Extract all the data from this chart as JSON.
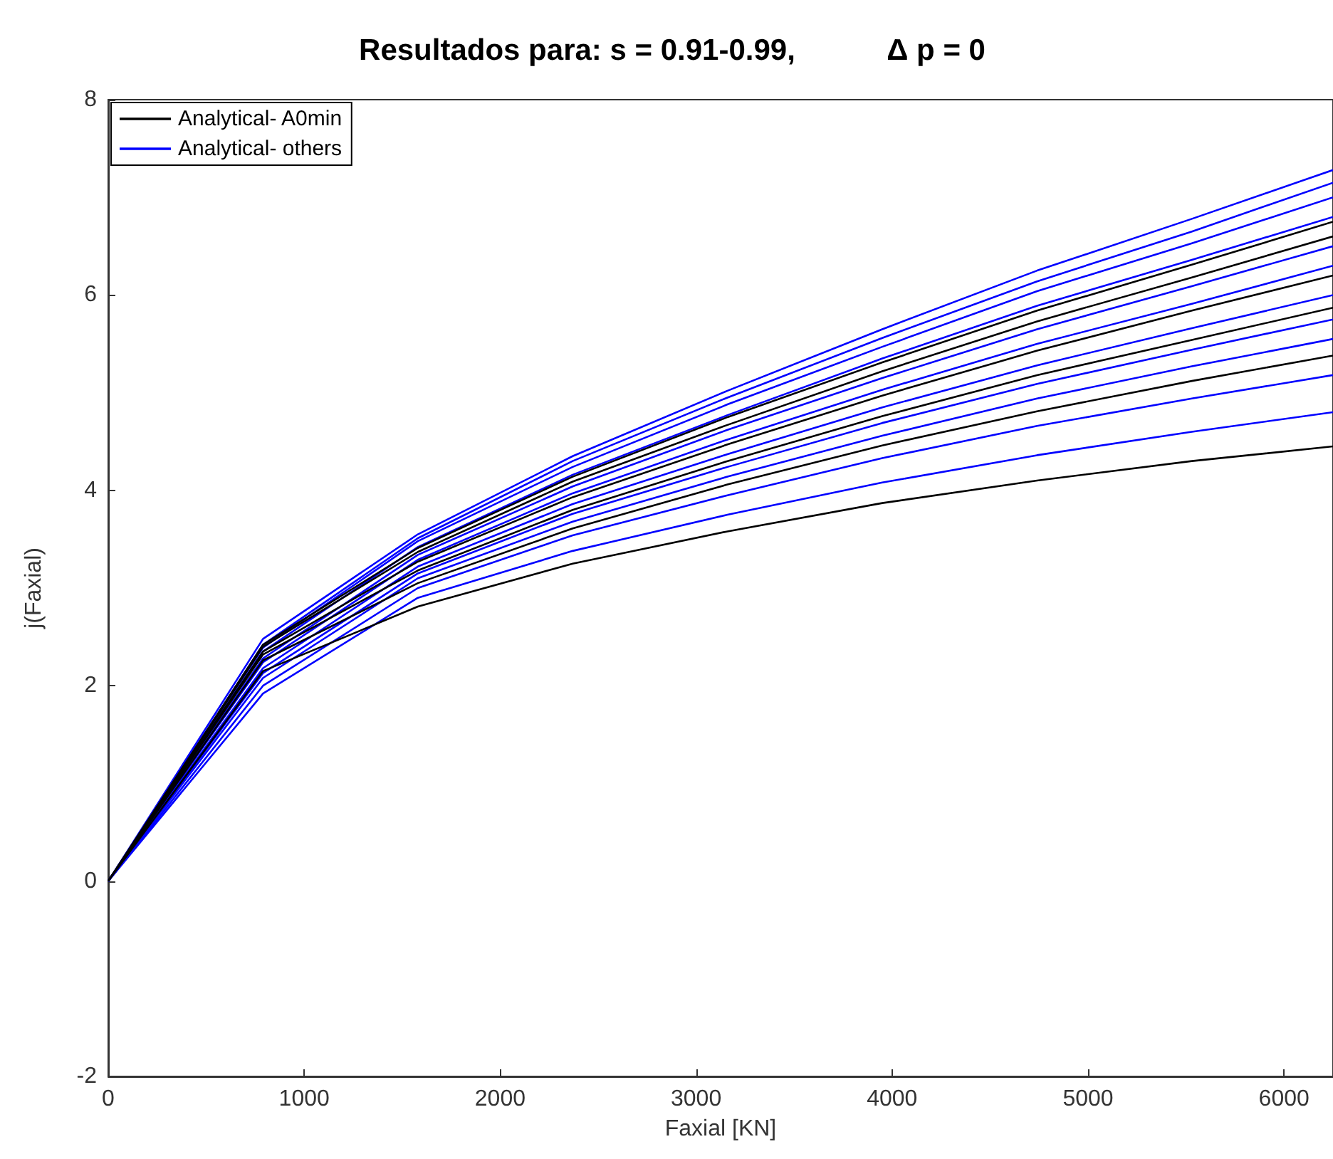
{
  "chart_data": {
    "type": "line",
    "title": "Resultados para: s = 0.91-0.99,           Δ p = 0",
    "xlabel": "Faxial [KN]",
    "ylabel": "j(Faxial)",
    "x": [
      0,
      790,
      1580,
      2370,
      3160,
      3950,
      4740,
      5530,
      6250
    ],
    "xlim": [
      0,
      6250
    ],
    "xticks": [
      0,
      1000,
      2000,
      3000,
      4000,
      5000,
      6000
    ],
    "ylim": [
      -2,
      8
    ],
    "yticks": [
      -2,
      0,
      2,
      4,
      6,
      8
    ],
    "grid": false,
    "legend": "top left",
    "marker": "none",
    "line_style": "solid",
    "series": [
      {
        "name": "Analytical- A0min",
        "color": "#000000",
        "values": [
          0,
          2.15,
          2.81,
          3.25,
          3.58,
          3.87,
          4.1,
          4.3,
          4.45
        ]
      },
      {
        "color": "#000000",
        "values": [
          0,
          2.26,
          3.05,
          3.61,
          4.06,
          4.46,
          4.81,
          5.12,
          5.38
        ]
      },
      {
        "color": "#000000",
        "values": [
          0,
          2.32,
          3.18,
          3.8,
          4.3,
          4.76,
          5.18,
          5.54,
          5.87
        ]
      },
      {
        "color": "#000000",
        "values": [
          0,
          2.35,
          3.27,
          3.93,
          4.47,
          4.97,
          5.43,
          5.84,
          6.2
        ]
      },
      {
        "color": "#000000",
        "values": [
          0,
          2.4,
          3.37,
          4.09,
          4.67,
          5.22,
          5.73,
          6.18,
          6.6
        ]
      },
      {
        "color": "#000000",
        "values": [
          0,
          2.42,
          3.41,
          4.14,
          4.75,
          5.31,
          5.84,
          6.31,
          6.75
        ]
      },
      {
        "name": "Analytical- others",
        "color": "#0000ff",
        "values": [
          0,
          1.92,
          2.9,
          3.38,
          3.75,
          4.08,
          4.36,
          4.6,
          4.8
        ]
      },
      {
        "color": "#0000ff",
        "values": [
          0,
          2.0,
          3.0,
          3.54,
          3.95,
          4.33,
          4.66,
          4.94,
          5.18
        ]
      },
      {
        "color": "#0000ff",
        "values": [
          0,
          2.08,
          3.1,
          3.68,
          4.14,
          4.56,
          4.94,
          5.27,
          5.55
        ]
      },
      {
        "color": "#0000ff",
        "values": [
          0,
          2.13,
          3.15,
          3.76,
          4.24,
          4.69,
          5.09,
          5.44,
          5.75
        ]
      },
      {
        "color": "#0000ff",
        "values": [
          0,
          2.18,
          3.22,
          3.86,
          4.37,
          4.85,
          5.28,
          5.66,
          6.0
        ]
      },
      {
        "color": "#0000ff",
        "values": [
          0,
          2.24,
          3.29,
          3.97,
          4.52,
          5.03,
          5.5,
          5.91,
          6.3
        ]
      },
      {
        "color": "#0000ff",
        "values": [
          0,
          2.28,
          3.34,
          4.04,
          4.62,
          5.15,
          5.65,
          6.09,
          6.5
        ]
      },
      {
        "color": "#0000ff",
        "values": [
          0,
          2.35,
          3.42,
          4.16,
          4.77,
          5.35,
          5.89,
          6.36,
          6.8
        ]
      },
      {
        "color": "#0000ff",
        "values": [
          0,
          2.39,
          3.48,
          4.24,
          4.88,
          5.47,
          6.04,
          6.53,
          7.0
        ]
      },
      {
        "color": "#0000ff",
        "values": [
          0,
          2.42,
          3.51,
          4.3,
          4.95,
          5.56,
          6.14,
          6.65,
          7.15
        ]
      },
      {
        "color": "#0000ff",
        "values": [
          0,
          2.48,
          3.55,
          4.35,
          5.02,
          5.65,
          6.25,
          6.78,
          7.28
        ]
      }
    ]
  }
}
